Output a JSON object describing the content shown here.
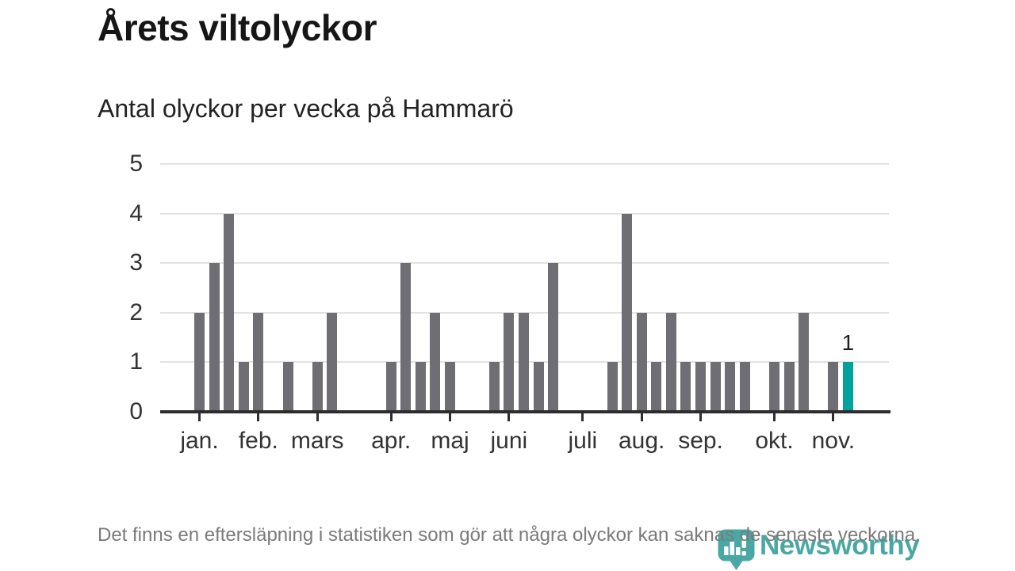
{
  "title": "Årets viltolyckor",
  "subtitle": "Antal olyckor per vecka på Hammarö",
  "footer_note": "Det finns en eftersläpning i statistiken som gör att några olyckor kan saknas de senaste veckorna.",
  "logo": {
    "brand": "Newsworthy",
    "icon": "newsworthy-pin-icon"
  },
  "colors": {
    "bar": "#6e6e74",
    "highlight": "#00a29b",
    "logo_teal": "#4aa8a4",
    "grid": "#e2e2e2",
    "axis": "#2d2d2d",
    "footer_text": "#7a7a7a"
  },
  "chart_data": {
    "type": "bar",
    "title": "Årets viltolyckor",
    "subtitle": "Antal olyckor per vecka på Hammarö",
    "xlabel": "",
    "ylabel": "",
    "x_unit": "vecka",
    "values": [
      2,
      3,
      4,
      1,
      2,
      0,
      1,
      0,
      1,
      2,
      0,
      0,
      0,
      1,
      3,
      1,
      2,
      1,
      0,
      0,
      1,
      2,
      2,
      1,
      3,
      0,
      0,
      0,
      1,
      4,
      2,
      1,
      2,
      1,
      1,
      1,
      1,
      1,
      0,
      1,
      1,
      2,
      0,
      1,
      1
    ],
    "highlight_index": 44,
    "highlight_label": "1",
    "y_ticks": [
      0,
      1,
      2,
      3,
      4,
      5
    ],
    "ylim": [
      0,
      5
    ],
    "grid": "horizontal-only",
    "legend": "none",
    "month_ticks": [
      {
        "label": "jan.",
        "week": 0
      },
      {
        "label": "feb.",
        "week": 4
      },
      {
        "label": "mars",
        "week": 8
      },
      {
        "label": "apr.",
        "week": 13
      },
      {
        "label": "maj",
        "week": 17
      },
      {
        "label": "juni",
        "week": 21
      },
      {
        "label": "juli",
        "week": 26
      },
      {
        "label": "aug.",
        "week": 30
      },
      {
        "label": "sep.",
        "week": 34
      },
      {
        "label": "okt.",
        "week": 39
      },
      {
        "label": "nov.",
        "week": 43
      }
    ]
  }
}
